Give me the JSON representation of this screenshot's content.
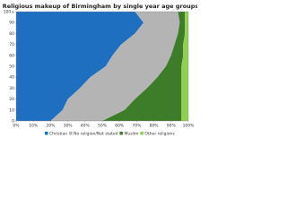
{
  "chart_data": {
    "type": "stacked-area",
    "orientation": "horizontal",
    "title": "Religious makeup of Birmingham by single year age groups",
    "x": [
      0,
      10,
      20,
      30,
      40,
      50,
      60,
      70,
      80,
      90,
      100
    ],
    "series": [
      {
        "name": "Christian",
        "color": "#1f6fc1",
        "values": [
          20,
          27,
          30,
          37,
          43,
          52,
          56,
          61,
          69,
          74,
          69
        ]
      },
      {
        "name": "No religion/Not stated",
        "color": "#b4b4b4",
        "values": [
          30,
          36,
          39,
          39,
          39,
          35,
          34,
          31,
          25,
          21,
          25
        ]
      },
      {
        "name": "Muslim",
        "color": "#3d7d2a",
        "values": [
          46,
          33,
          27,
          20,
          14,
          9,
          7,
          5,
          4,
          3,
          4
        ]
      },
      {
        "name": "Other religions",
        "color": "#8fd14f",
        "values": [
          4,
          4,
          4,
          4,
          4,
          4,
          3,
          3,
          2,
          2,
          2
        ]
      }
    ],
    "xlim": [
      0,
      100
    ],
    "xticks": [
      0,
      10,
      20,
      30,
      40,
      50,
      60,
      70,
      80,
      90,
      {
        "value": 100,
        "label": "100+"
      }
    ],
    "ylim": [
      0,
      100
    ],
    "yticks": [
      {
        "value": 0,
        "label": "0%"
      },
      {
        "value": 10,
        "label": "10%"
      },
      {
        "value": 20,
        "label": "20%"
      },
      {
        "value": 30,
        "label": "30%"
      },
      {
        "value": 40,
        "label": "40%"
      },
      {
        "value": 50,
        "label": "50%"
      },
      {
        "value": 60,
        "label": "60%"
      },
      {
        "value": 70,
        "label": "70%"
      },
      {
        "value": 80,
        "label": "80%"
      },
      {
        "value": 90,
        "label": "90%"
      },
      {
        "value": 100,
        "label": "100%"
      }
    ],
    "legend": "bottom"
  }
}
